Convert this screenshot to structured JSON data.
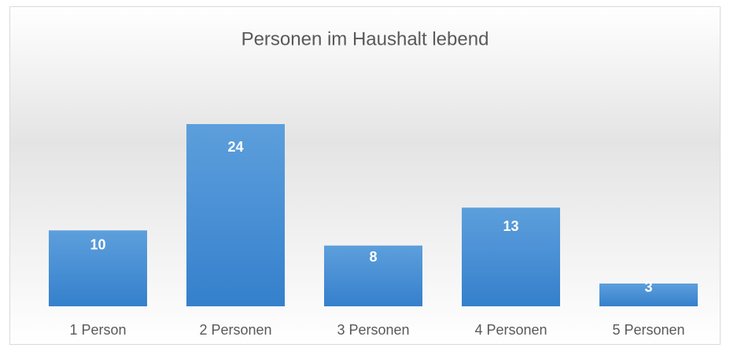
{
  "chart_data": {
    "type": "bar",
    "title": "Personen im Haushalt lebend",
    "categories": [
      "1 Person",
      "2 Personen",
      "3 Personen",
      "4 Personen",
      "5 Personen"
    ],
    "values": [
      10,
      24,
      8,
      13,
      3
    ],
    "color": "#4a8fd4",
    "grid": false
  }
}
